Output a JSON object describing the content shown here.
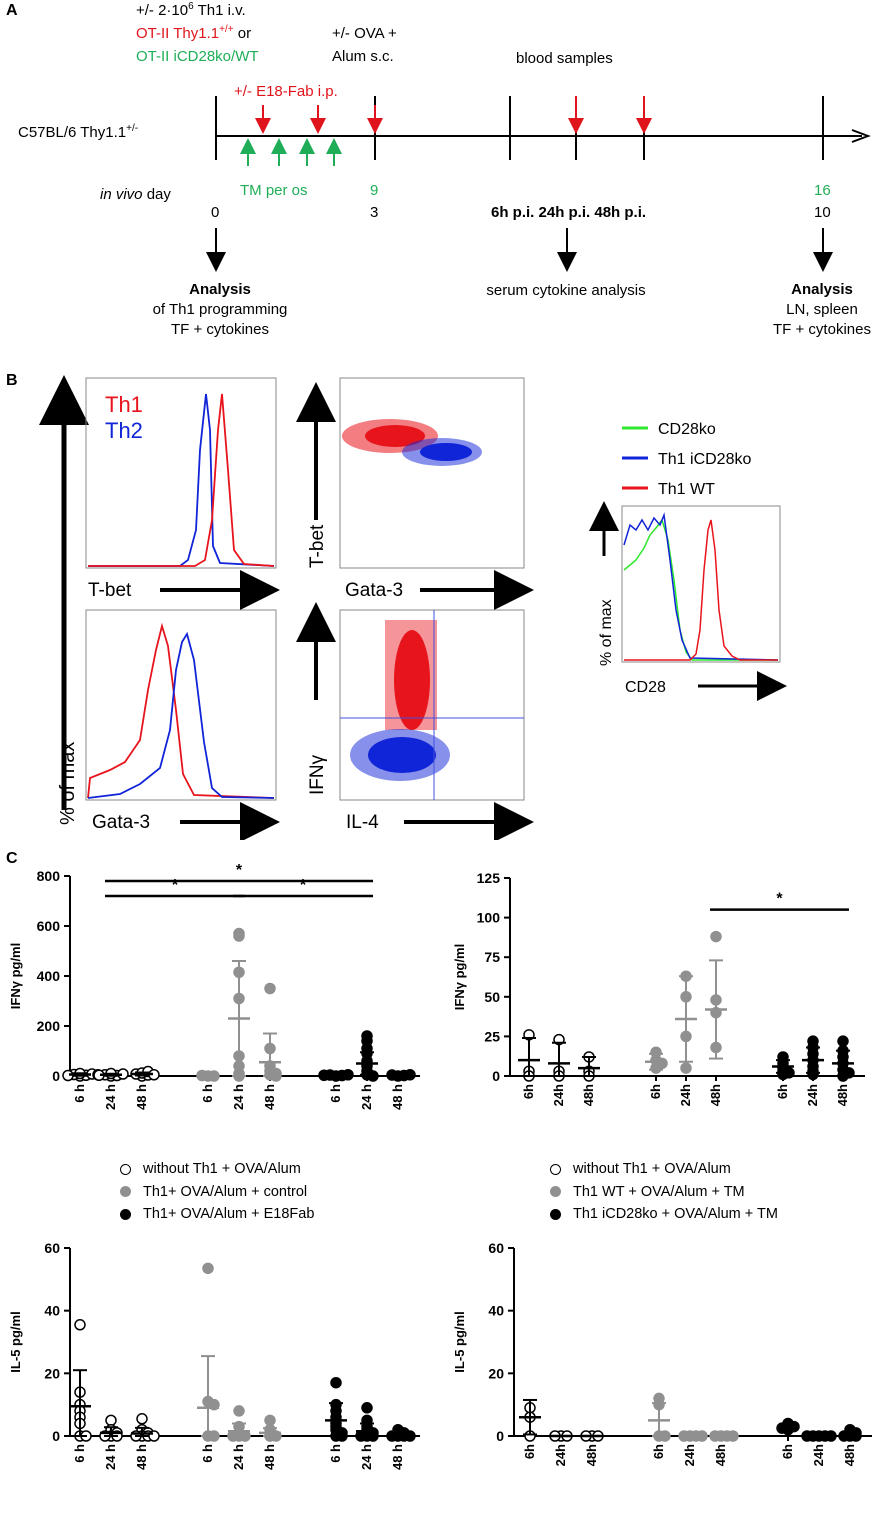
{
  "panelA": {
    "letter": "A",
    "transfer": {
      "line1": "+/- 2·10",
      "exp": "6",
      "line1_end": " Th1 i.v.",
      "red_line": "OT-II Thy1.1",
      "red_exp": "+/+",
      "or": " or",
      "green_line": "OT-II iCD28ko/WT"
    },
    "ova": {
      "line1": "+/- OVA +",
      "line2": "Alum s.c."
    },
    "blood": "blood samples",
    "e18": "+/- E18-Fab i.p.",
    "mouse": "C57BL/6 Thy1.1",
    "mouse_exp": "+/-",
    "tm": "TM per os",
    "vivo": {
      "italic": "in vivo",
      "rest": " day"
    },
    "days": {
      "d0": "0",
      "d3": "3",
      "d9": "9",
      "d10": "10",
      "d16": "16"
    },
    "timepoints": "6h p.i. 24h p.i. 48h p.i.",
    "analysis_left": {
      "title": "Analysis",
      "l1": "of Th1 programming",
      "l2": "TF + cytokines"
    },
    "serum": "serum cytokine analysis",
    "analysis_right": {
      "title": "Analysis",
      "l1": "LN, spleen",
      "l2": "TF + cytokines"
    }
  },
  "panelB": {
    "letter": "B",
    "hist_legend": {
      "th1": "Th1",
      "th2": "Th2"
    },
    "y_label": "% of max",
    "x_tbet": "T-bet",
    "x_gata": "Gata-3",
    "dot_y_tbet": "T-bet",
    "dot_x_gata": "Gata-3",
    "dot_y_ifn": "IFNγ",
    "dot_x_il4": "IL-4",
    "cd28_legend": {
      "cd28ko": "CD28ko",
      "iko": "Th1 iCD28ko",
      "wt": "Th1 WT"
    },
    "cd28_y": "% of max",
    "cd28_x": "CD28",
    "colors": {
      "th1": "#e8141c",
      "th2": "#1024d8",
      "green": "#2ee82e"
    }
  },
  "panelC": {
    "letter": "C",
    "legend_left": [
      "without Th1 + OVA/Alum",
      "Th1+ OVA/Alum + control",
      "Th1+ OVA/Alum + E18Fab"
    ],
    "legend_right": [
      "without Th1 + OVA/Alum",
      "Th1  WT + OVA/Alum + TM",
      "Th1 iCD28ko + OVA/Alum + TM"
    ],
    "star": "*"
  },
  "chart_data": [
    {
      "type": "scatter",
      "title": "",
      "ylabel": "IFNγ pg/ml",
      "ylim": [
        0,
        800
      ],
      "yticks": [
        "0",
        "200",
        "400",
        "600",
        "800"
      ],
      "categories": [
        "6 h",
        "24 h",
        "48 h",
        "6 h",
        "24 h",
        "48 h",
        "6 h",
        "24 h",
        "48 h"
      ],
      "series": [
        {
          "name": "without Th1 + OVA/Alum",
          "style": "open",
          "points": [
            [
              0,
              [
                0,
                3,
                6,
                8,
                2,
                10,
                5
              ]
            ],
            [
              1,
              [
                0,
                2,
                5,
                8,
                3,
                10
              ]
            ],
            [
              2,
              [
                0,
                4,
                8,
                12,
                18,
                5
              ]
            ]
          ],
          "mean": [
            6,
            5,
            8
          ],
          "sd": [
            5,
            4,
            6
          ]
        },
        {
          "name": "Th1+ OVA/Alum + control",
          "style": "gray",
          "points": [
            [
              3,
              [
                0,
                0,
                2
              ]
            ],
            [
              4,
              [
                570,
                560,
                415,
                310,
                80,
                0,
                10,
                40
              ]
            ],
            [
              5,
              [
                350,
                110,
                40,
                20,
                10,
                5,
                0
              ]
            ]
          ],
          "mean": [
            0,
            230,
            55
          ],
          "sd": [
            0,
            230,
            115
          ]
        },
        {
          "name": "Th1+ OVA/Alum + E18Fab",
          "style": "black",
          "points": [
            [
              6,
              [
                0,
                2,
                4,
                5,
                3
              ]
            ],
            [
              7,
              [
                160,
                140,
                110,
                90,
                60,
                40,
                20,
                5,
                0
              ]
            ],
            [
              8,
              [
                0,
                2,
                4,
                5
              ]
            ]
          ],
          "mean": [
            3,
            50,
            2
          ],
          "sd": [
            2,
            45,
            2
          ]
        }
      ],
      "brackets": [
        {
          "from": 1,
          "to": 7,
          "level": 780
        },
        {
          "from": 1,
          "to": 4,
          "level": 720
        },
        {
          "from": 4,
          "to": 7,
          "level": 720
        }
      ]
    },
    {
      "type": "scatter",
      "ylabel": "IFNγ pg/ml",
      "ylim": [
        0,
        125
      ],
      "yticks": [
        "0",
        "25",
        "50",
        "75",
        "100",
        "125"
      ],
      "categories": [
        "6h",
        "24h",
        "48h",
        "6h",
        "24h",
        "48h",
        "6h",
        "24h",
        "48h"
      ],
      "series": [
        {
          "name": "without Th1 + OVA/Alum",
          "style": "open",
          "points": [
            [
              0,
              [
                26,
                3,
                0
              ]
            ],
            [
              1,
              [
                23,
                3,
                0
              ]
            ],
            [
              2,
              [
                12,
                3,
                0
              ]
            ]
          ],
          "mean": [
            10,
            8,
            5
          ],
          "sd": [
            14,
            13,
            7
          ]
        },
        {
          "name": "Th1  WT + OVA/Alum + TM",
          "style": "gray",
          "points": [
            [
              3,
              [
                15,
                10,
                8,
                5
              ]
            ],
            [
              4,
              [
                63,
                50,
                25,
                5
              ]
            ],
            [
              5,
              [
                88,
                48,
                40,
                18
              ]
            ]
          ],
          "mean": [
            9,
            36,
            42
          ],
          "sd": [
            5,
            27,
            31
          ]
        },
        {
          "name": "Th1 iCD28ko + OVA/Alum + TM",
          "style": "black",
          "points": [
            [
              6,
              [
                12,
                8,
                5,
                3,
                2,
                1
              ]
            ],
            [
              7,
              [
                22,
                18,
                14,
                10,
                6,
                3,
                1
              ]
            ],
            [
              8,
              [
                22,
                16,
                12,
                8,
                4,
                2,
                0
              ]
            ]
          ],
          "mean": [
            6,
            10,
            8
          ],
          "sd": [
            4,
            8,
            8
          ]
        }
      ],
      "brackets": [
        {
          "from": 5,
          "to": 8,
          "level": 105
        }
      ]
    },
    {
      "type": "scatter",
      "ylabel": "IL-5 pg/ml",
      "ylim": [
        0,
        60
      ],
      "yticks": [
        "0",
        "20",
        "40",
        "60"
      ],
      "categories": [
        "6 h",
        "24 h",
        "48 h",
        "6 h",
        "24 h",
        "48 h",
        "6 h",
        "24 h",
        "48 h"
      ],
      "series": [
        {
          "name": "without Th1 + OVA/Alum",
          "style": "open",
          "points": [
            [
              0,
              [
                35.5,
                14,
                10,
                8,
                6,
                4,
                0,
                0
              ]
            ],
            [
              1,
              [
                5,
                2,
                1,
                0,
                0,
                0
              ]
            ],
            [
              2,
              [
                5.5,
                2,
                1,
                0,
                0,
                0,
                0
              ]
            ]
          ],
          "mean": [
            9.5,
            1,
            0.8
          ],
          "sd": [
            11.5,
            1.8,
            1.8
          ]
        },
        {
          "name": "Th1+ OVA/Alum + control",
          "style": "gray",
          "points": [
            [
              3,
              [
                53.5,
                11,
                10,
                0,
                0
              ]
            ],
            [
              4,
              [
                8,
                3,
                0,
                0,
                0
              ]
            ],
            [
              5,
              [
                5,
                2,
                0,
                0
              ]
            ]
          ],
          "mean": [
            9,
            1.5,
            1
          ],
          "sd": [
            16.5,
            2.5,
            1.5
          ]
        },
        {
          "name": "Th1+ OVA/Alum + E18Fab",
          "style": "black",
          "points": [
            [
              6,
              [
                17,
                10,
                8,
                6,
                4,
                3,
                2,
                1,
                0,
                0
              ]
            ],
            [
              7,
              [
                9,
                5,
                3,
                2,
                1,
                0,
                0,
                0
              ]
            ],
            [
              8,
              [
                2,
                1,
                0,
                0,
                0,
                0
              ]
            ]
          ],
          "mean": [
            5,
            1.5,
            0.3
          ],
          "sd": [
            5.5,
            2.5,
            0.8
          ]
        }
      ]
    },
    {
      "type": "scatter",
      "ylabel": "IL-5 pg/ml",
      "ylim": [
        0,
        60
      ],
      "yticks": [
        "0",
        "20",
        "40",
        "60"
      ],
      "categories": [
        "6h",
        "24h",
        "48h",
        "6h",
        "24h",
        "48h",
        "6h",
        "24h",
        "48h"
      ],
      "series": [
        {
          "name": "without Th1 + OVA/Alum",
          "style": "open",
          "points": [
            [
              0,
              [
                9,
                6,
                0
              ]
            ],
            [
              1,
              [
                0,
                0,
                0
              ]
            ],
            [
              2,
              [
                0,
                0,
                0
              ]
            ]
          ],
          "mean": [
            6,
            0,
            0
          ],
          "sd": [
            5.5,
            0,
            0
          ]
        },
        {
          "name": "Th1  WT + OVA/Alum + TM",
          "style": "gray",
          "points": [
            [
              3,
              [
                12,
                10,
                0,
                0
              ]
            ],
            [
              4,
              [
                0,
                0,
                0,
                0
              ]
            ],
            [
              5,
              [
                0,
                0,
                0,
                0
              ]
            ]
          ],
          "mean": [
            5,
            0,
            0
          ],
          "sd": [
            5.5,
            0,
            0
          ]
        },
        {
          "name": "Th1 iCD28ko + OVA/Alum + TM",
          "style": "black",
          "points": [
            [
              6,
              [
                4,
                3.5,
                3,
                2.5,
                2
              ]
            ],
            [
              7,
              [
                0,
                0,
                0,
                0,
                0
              ]
            ],
            [
              8,
              [
                2,
                1,
                0,
                0,
                0
              ]
            ]
          ],
          "mean": [
            3,
            0,
            0.5
          ],
          "sd": [
            0.8,
            0,
            0.8
          ]
        }
      ]
    }
  ]
}
